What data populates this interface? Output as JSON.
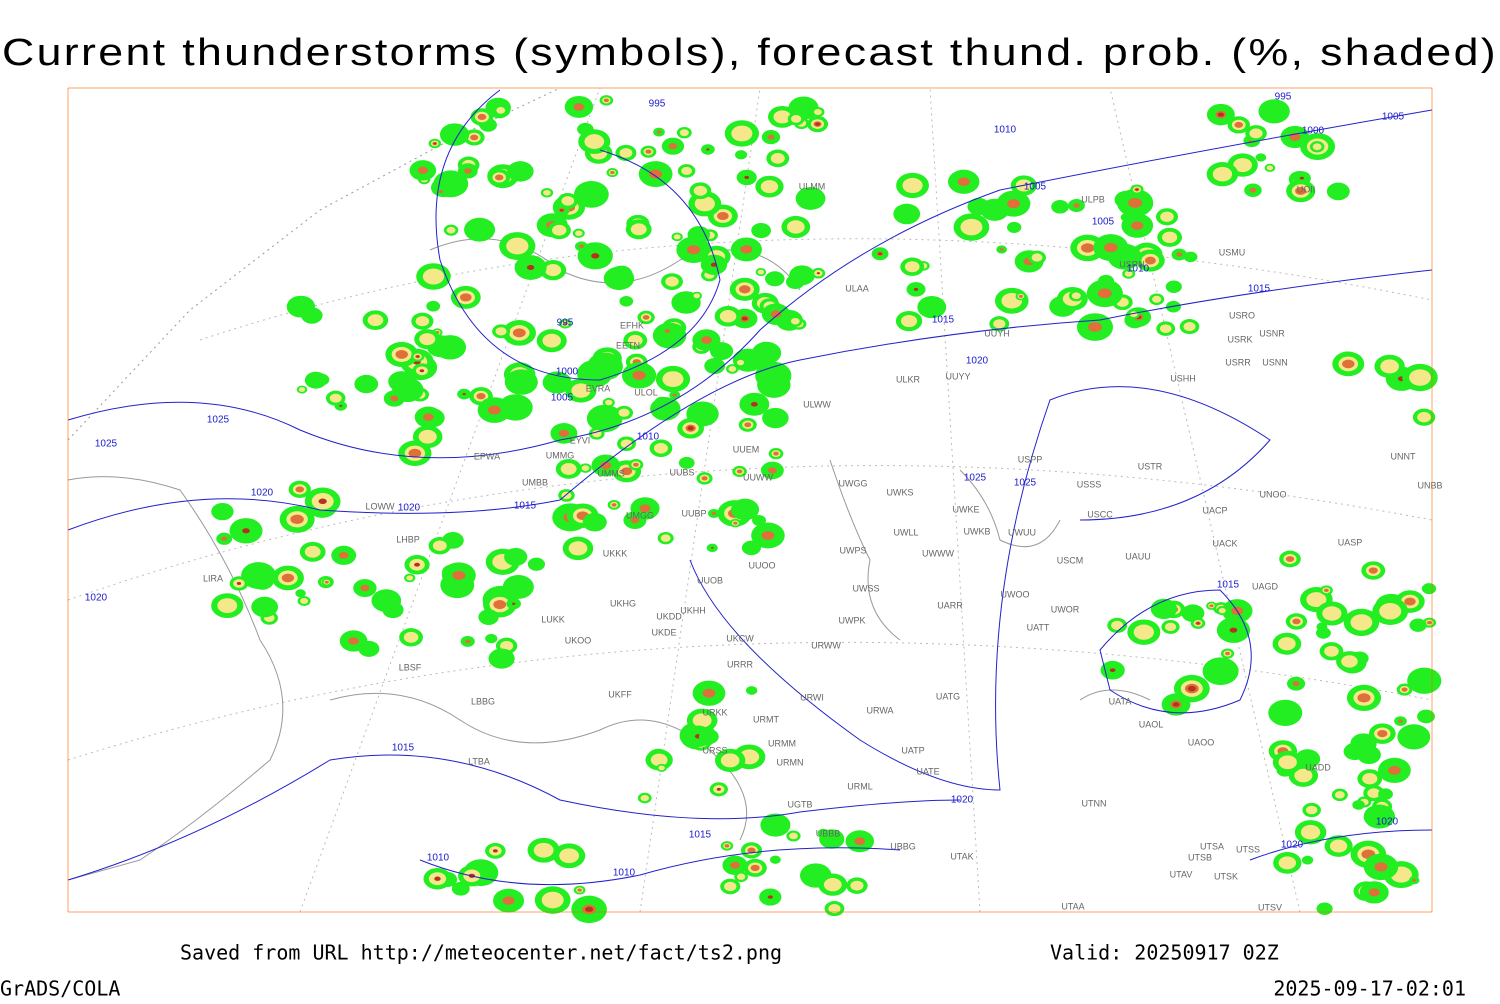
{
  "header": {
    "title": "Current thunderstorms (symbols), forecast thund. prob. (%, shaded)"
  },
  "map": {
    "isobar_labels": [
      "995",
      "1000",
      "995",
      "1005",
      "1010",
      "1005",
      "1005",
      "1010",
      "1015",
      "1015",
      "995",
      "1000",
      "1005",
      "1010",
      "1020",
      "1025",
      "1025",
      "1020",
      "1020",
      "1015",
      "1025",
      "1025",
      "1015",
      "1020",
      "1015",
      "1020",
      "1015",
      "1010",
      "1010",
      "1020",
      "1020"
    ],
    "stations": [
      "ULMM",
      "ULAA",
      "UUYH",
      "ULWW",
      "UUYY",
      "ULKR",
      "UUEM",
      "UUWW",
      "UWGG",
      "UWKS",
      "UUBP",
      "UMGG",
      "UKKK",
      "UUOO",
      "UUOB",
      "UWPS",
      "UWSS",
      "UWWW",
      "UWKE",
      "UWKB",
      "UWUU",
      "UWLL",
      "USPP",
      "USSS",
      "USTR",
      "USCC",
      "USCM",
      "UAUU",
      "UACP",
      "UACK",
      "UNOO",
      "UNNT",
      "UNBB",
      "UASP",
      "UAGD",
      "UWOO",
      "UWOR",
      "UATT",
      "UARR",
      "UWPK",
      "URWW",
      "UKCW",
      "URRR",
      "URWI",
      "URWA",
      "UATG",
      "UATE",
      "UATP",
      "URML",
      "URMT",
      "URMM",
      "URMN",
      "UKFF",
      "UKHH",
      "UKDD",
      "UKDE",
      "UKHG",
      "UKOO",
      "LUKK",
      "LBBG",
      "LBSF",
      "LTBA",
      "LIRA",
      "LHBP",
      "LOWW",
      "UMBB",
      "UMMG",
      "EPWA",
      "EYVI",
      "UMMS",
      "UUBS",
      "URSS",
      "URKK",
      "UGTB",
      "UBBB",
      "UTAK",
      "UBBG",
      "UTNN",
      "UTSA",
      "UTSB",
      "UTSS",
      "UTAV",
      "UTSK",
      "UTAA",
      "UTSV",
      "UAOO",
      "UAOL",
      "UATA",
      "UADD",
      "USHH",
      "USRR",
      "USNN",
      "USRK",
      "USNR",
      "USRO",
      "USMU",
      "USRN",
      "UOII",
      "ULPB",
      "EFHK",
      "EETN",
      "EVRA",
      "ULOL"
    ]
  },
  "footer": {
    "saved_from": "Saved from URL http://meteocenter.net/fact/ts2.png",
    "valid": "Valid: 20250917 02Z",
    "software": "GrADS/COLA",
    "timestamp": "2025-09-17-02:01"
  }
}
